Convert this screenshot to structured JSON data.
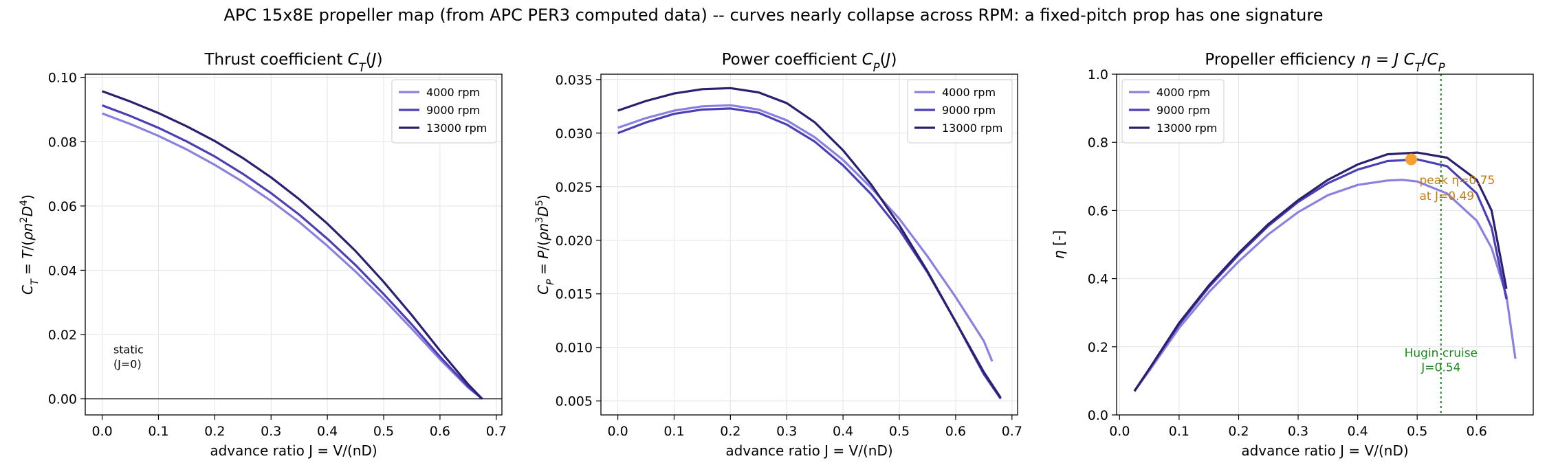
{
  "figure": {
    "title": "APC 15x8E propeller map (from APC PER3 computed data) -- curves nearly collapse across RPM: a fixed-pitch prop has one signature"
  },
  "colors": {
    "rpm4000": "#8a80e0",
    "rpm9000": "#4b3fb8",
    "rpm13000": "#2a2070",
    "peak_marker": "#f5a030",
    "peak_text": "#c07a10",
    "cruise": "#1a8a1a",
    "grid": "#e4e4e4"
  },
  "chart_data": [
    {
      "type": "line",
      "title": "Thrust coefficient C_T(J)",
      "xlabel": "advance ratio  J = V/(nD)",
      "ylabel": "C_T = T/(ρn²D⁴)",
      "xlim": [
        -0.03,
        0.71
      ],
      "ylim": [
        -0.005,
        0.101
      ],
      "xticks": [
        "0.0",
        "0.1",
        "0.2",
        "0.3",
        "0.4",
        "0.5",
        "0.6",
        "0.7"
      ],
      "yticks": [
        "0.00",
        "0.02",
        "0.04",
        "0.06",
        "0.08",
        "0.10"
      ],
      "grid": true,
      "legend_position": "top-right",
      "zero_line": true,
      "annotations": [
        {
          "text": "static\n(J=0)",
          "x": 0.02,
          "y": 0.012
        }
      ],
      "series": [
        {
          "name": "4000 rpm",
          "x": [
            0.0,
            0.05,
            0.1,
            0.15,
            0.2,
            0.25,
            0.3,
            0.35,
            0.4,
            0.45,
            0.5,
            0.55,
            0.6,
            0.65,
            0.675
          ],
          "y": [
            0.0888,
            0.0855,
            0.0818,
            0.0776,
            0.0728,
            0.0675,
            0.0616,
            0.055,
            0.0476,
            0.0396,
            0.031,
            0.0218,
            0.0123,
            0.0035,
            0.0
          ]
        },
        {
          "name": "9000 rpm",
          "x": [
            0.0,
            0.05,
            0.1,
            0.15,
            0.2,
            0.25,
            0.3,
            0.35,
            0.4,
            0.45,
            0.5,
            0.55,
            0.6,
            0.65,
            0.675
          ],
          "y": [
            0.0913,
            0.088,
            0.0843,
            0.0801,
            0.0754,
            0.07,
            0.064,
            0.0573,
            0.0498,
            0.0416,
            0.0326,
            0.0231,
            0.0131,
            0.0038,
            0.0
          ]
        },
        {
          "name": "13000 rpm",
          "x": [
            0.0,
            0.05,
            0.1,
            0.15,
            0.2,
            0.25,
            0.3,
            0.35,
            0.4,
            0.45,
            0.5,
            0.55,
            0.6,
            0.65,
            0.675
          ],
          "y": [
            0.0957,
            0.0925,
            0.0889,
            0.0848,
            0.0802,
            0.0749,
            0.0689,
            0.0621,
            0.0545,
            0.046,
            0.0364,
            0.026,
            0.015,
            0.0045,
            0.0
          ]
        }
      ]
    },
    {
      "type": "line",
      "title": "Power coefficient C_P(J)",
      "xlabel": "advance ratio  J = V/(nD)",
      "ylabel": "C_P = P/(ρn³D⁵)",
      "xlim": [
        -0.03,
        0.71
      ],
      "ylim": [
        0.0037,
        0.0355
      ],
      "xticks": [
        "0.0",
        "0.1",
        "0.2",
        "0.3",
        "0.4",
        "0.5",
        "0.6",
        "0.7"
      ],
      "yticks": [
        "0.005",
        "0.010",
        "0.015",
        "0.020",
        "0.025",
        "0.030",
        "0.035"
      ],
      "grid": true,
      "legend_position": "top-right",
      "series": [
        {
          "name": "4000 rpm",
          "x": [
            0.0,
            0.05,
            0.1,
            0.15,
            0.2,
            0.25,
            0.3,
            0.35,
            0.4,
            0.45,
            0.5,
            0.55,
            0.6,
            0.65,
            0.665
          ],
          "y": [
            0.0305,
            0.0314,
            0.0321,
            0.0325,
            0.0326,
            0.0322,
            0.0312,
            0.0296,
            0.0275,
            0.0249,
            0.022,
            0.0185,
            0.0147,
            0.0106,
            0.0087
          ]
        },
        {
          "name": "9000 rpm",
          "x": [
            0.0,
            0.05,
            0.1,
            0.15,
            0.2,
            0.25,
            0.3,
            0.35,
            0.4,
            0.45,
            0.5,
            0.55,
            0.6,
            0.65,
            0.68
          ],
          "y": [
            0.03,
            0.031,
            0.0318,
            0.0322,
            0.0323,
            0.0319,
            0.0308,
            0.0292,
            0.027,
            0.0243,
            0.021,
            0.017,
            0.0124,
            0.0075,
            0.0052
          ]
        },
        {
          "name": "13000 rpm",
          "x": [
            0.0,
            0.05,
            0.1,
            0.15,
            0.2,
            0.25,
            0.3,
            0.35,
            0.4,
            0.45,
            0.5,
            0.55,
            0.6,
            0.65,
            0.68
          ],
          "y": [
            0.0321,
            0.033,
            0.0337,
            0.0341,
            0.0342,
            0.0338,
            0.0328,
            0.031,
            0.0284,
            0.0252,
            0.0214,
            0.0171,
            0.0124,
            0.0077,
            0.0053
          ]
        }
      ]
    },
    {
      "type": "line",
      "title": "Propeller efficiency η = J C_T/C_P",
      "xlabel": "advance ratio  J = V/(nD)",
      "ylabel": "η [-]",
      "xlim": [
        -0.005,
        0.695
      ],
      "ylim": [
        0.0,
        1.0
      ],
      "xticks": [
        "0.0",
        "0.1",
        "0.2",
        "0.3",
        "0.4",
        "0.5",
        "0.6"
      ],
      "yticks": [
        "0.0",
        "0.2",
        "0.4",
        "0.6",
        "0.8",
        "1.0"
      ],
      "grid": true,
      "legend_position": "top-left",
      "cruise_line": {
        "x": 0.54,
        "label": "Hugin cruise\nJ=0.54"
      },
      "peak": {
        "x": 0.49,
        "y": 0.75,
        "label": "peak η=0.75\nat J=0.49"
      },
      "series": [
        {
          "name": "4000 rpm",
          "x": [
            0.025,
            0.05,
            0.1,
            0.15,
            0.2,
            0.25,
            0.3,
            0.35,
            0.4,
            0.45,
            0.475,
            0.5,
            0.55,
            0.6,
            0.625,
            0.65,
            0.665
          ],
          "y": [
            0.07,
            0.13,
            0.255,
            0.36,
            0.45,
            0.53,
            0.595,
            0.645,
            0.675,
            0.688,
            0.69,
            0.685,
            0.65,
            0.57,
            0.49,
            0.35,
            0.165
          ]
        },
        {
          "name": "9000 rpm",
          "x": [
            0.025,
            0.05,
            0.1,
            0.15,
            0.2,
            0.25,
            0.3,
            0.35,
            0.4,
            0.45,
            0.5,
            0.55,
            0.6,
            0.625,
            0.65
          ],
          "y": [
            0.07,
            0.135,
            0.265,
            0.375,
            0.47,
            0.555,
            0.625,
            0.68,
            0.72,
            0.745,
            0.75,
            0.73,
            0.65,
            0.55,
            0.34
          ]
        },
        {
          "name": "13000 rpm",
          "x": [
            0.025,
            0.05,
            0.1,
            0.15,
            0.2,
            0.25,
            0.3,
            0.35,
            0.4,
            0.45,
            0.5,
            0.55,
            0.6,
            0.625,
            0.65
          ],
          "y": [
            0.07,
            0.135,
            0.27,
            0.38,
            0.475,
            0.56,
            0.63,
            0.69,
            0.735,
            0.765,
            0.77,
            0.755,
            0.69,
            0.6,
            0.37
          ]
        }
      ]
    }
  ]
}
